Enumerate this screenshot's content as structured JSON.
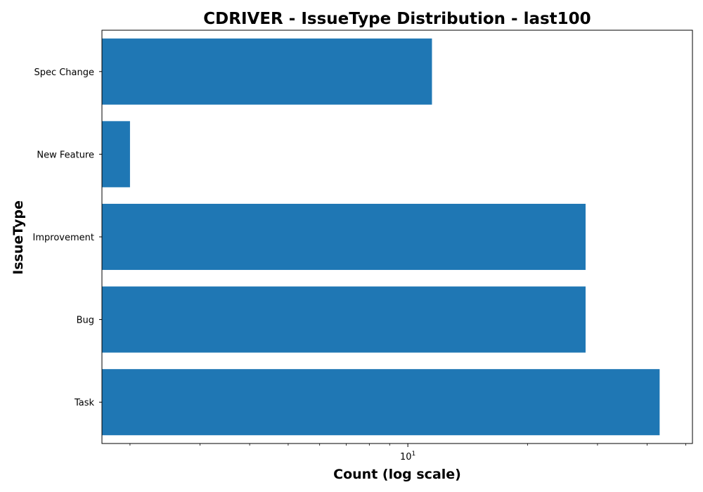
{
  "chart_data": {
    "type": "bar",
    "orientation": "horizontal",
    "title": "CDRIVER - IssueType Distribution - last100",
    "xlabel": "Count (log scale)",
    "ylabel": "IssueType",
    "x_scale": "log",
    "xlim": [
      1.7,
      52
    ],
    "x_tick_labels": [
      {
        "value": 10,
        "base": "10",
        "exponent": "1"
      }
    ],
    "categories": [
      "Task",
      "Bug",
      "Improvement",
      "New Feature",
      "Spec Change"
    ],
    "series": [
      {
        "values": [
          43,
          28,
          28,
          2,
          11.5
        ]
      }
    ],
    "color": "#1f77b4",
    "grid": false,
    "legend": "none"
  }
}
